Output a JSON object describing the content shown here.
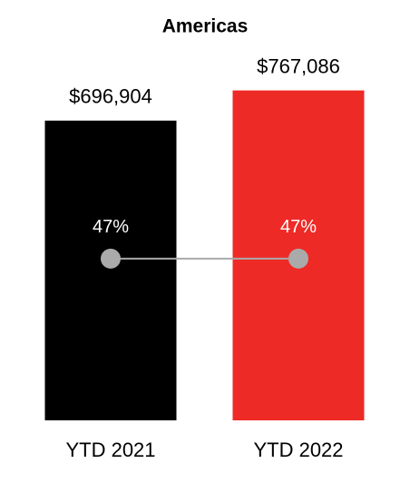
{
  "chart_data": {
    "type": "bar",
    "title": "Americas",
    "categories": [
      "YTD 2021",
      "YTD 2022"
    ],
    "series": [
      {
        "values": [
          696904,
          767086
        ],
        "value_labels": [
          "$696,904",
          "$767,086"
        ],
        "colors": [
          "#000000",
          "#ee2a27"
        ]
      },
      {
        "values": [
          47,
          47
        ],
        "value_labels": [
          "47%",
          "47%"
        ],
        "axis": "y2",
        "color": "#aaaaaa"
      }
    ],
    "ylim": [
      0,
      800000
    ],
    "y2lim": [
      0,
      100
    ]
  }
}
